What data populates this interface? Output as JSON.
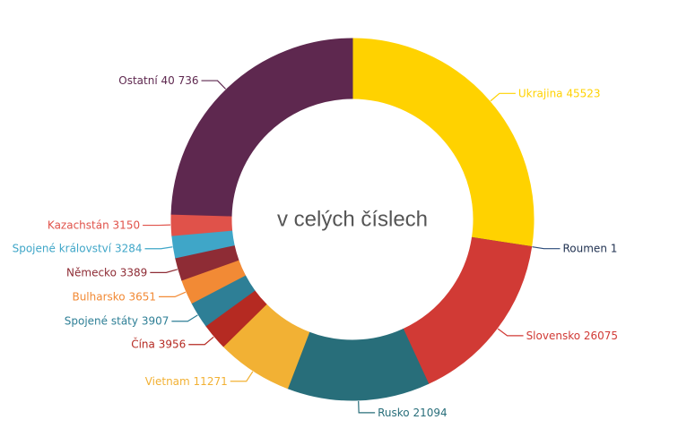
{
  "chart_data": {
    "type": "donut",
    "title": "v celých číslech",
    "categories": [
      "Ukrajina",
      "Roumen",
      "Slovensko",
      "Rusko",
      "Vietnam",
      "Čína",
      "Spojené státy",
      "Bulharsko",
      "Německo",
      "Spojené království",
      "Kazachstán",
      "Ostatní"
    ],
    "values": [
      45523,
      1,
      26075,
      21094,
      11271,
      3956,
      3907,
      3651,
      3389,
      3284,
      3150,
      40736
    ],
    "value_labels": [
      "45523",
      "1",
      "26075",
      "21094",
      "11271",
      "3956",
      "3907",
      "3651",
      "3389",
      "3284",
      "3150",
      "40 736"
    ],
    "colors": [
      "#ffd200",
      "#2a4a7a",
      "#d13a35",
      "#286e7a",
      "#f2b134",
      "#b52a22",
      "#2e7f96",
      "#f28a35",
      "#8e2c35",
      "#3fa6c8",
      "#e0524a",
      "#5e284f"
    ]
  }
}
